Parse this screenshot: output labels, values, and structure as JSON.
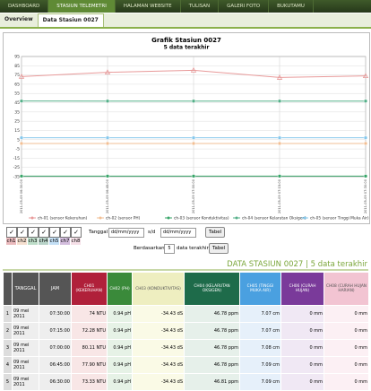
{
  "nav": [
    "DASHBOARD",
    "STASIUN TELEMETRI",
    "HALAMAN WEBSITE",
    "TULISAN",
    "GALERI FOTO",
    "BUKUTAMU"
  ],
  "tabs": [
    "Overview",
    "Data Stasiun 0027"
  ],
  "chart_data": {
    "type": "line",
    "title": "Grafik Stasiun 0027",
    "subtitle": "5 data terakhir",
    "categories": [
      "2011-05-09 06:30:00",
      "2011-05-09 06:45:00",
      "2011-05-09 07:00:00",
      "2011-05-09 07:15:00",
      "2011-05-09 07:30:00"
    ],
    "series": [
      {
        "name": "ch-01 (sensor Kekeruhan)",
        "color": "#e89a9a",
        "marker": "triangle",
        "values": [
          73.33,
          77.9,
          80.11,
          72.28,
          74
        ]
      },
      {
        "name": "ch-02 (sensor PH)",
        "color": "#f2bf94",
        "marker": "circle",
        "values": [
          0.94,
          0.94,
          0.94,
          0.94,
          0.94
        ]
      },
      {
        "name": "ch-03 (sensor Konduktivitas)",
        "color": "#3aa66a",
        "marker": "circle",
        "values": [
          -34.43,
          -34.43,
          -34.43,
          -34.43,
          -34.43
        ]
      },
      {
        "name": "ch-04 (sensor Kelarutan Oksigen)",
        "color": "#56b08a",
        "marker": "circle",
        "values": [
          46.81,
          46.78,
          46.78,
          46.78,
          46.78
        ]
      },
      {
        "name": "ch-05 (sensor Tinggi Muka Air)",
        "color": "#86c8ec",
        "marker": "circle",
        "values": [
          7.09,
          7.09,
          7.08,
          7.07,
          7.07
        ]
      }
    ],
    "ylim": [
      -35,
      95
    ],
    "yticks": [
      -35,
      -25,
      -15,
      -5,
      5,
      15,
      25,
      35,
      45,
      55,
      65,
      75,
      85,
      95
    ],
    "grid": true
  },
  "form": {
    "channels": [
      "ch1",
      "ch2",
      "ch3",
      "ch4",
      "ch5",
      "ch7",
      "ch8"
    ],
    "date_label": "Tanggal",
    "date_from": "dd/mm/yyyy",
    "sd": "s/d",
    "date_to": "dd/mm/yyyy",
    "button1": "Tabel",
    "by_label": "Berdasarkan",
    "count": "5",
    "count_suffix": "data terakhir",
    "button2": "Tabel"
  },
  "table": {
    "heading": "DATA STASIUN 0027 | 5 data terakhir",
    "headers": [
      "TANGGAL",
      "JAM",
      "CH01 (KEKERUHAN)",
      "CH02 (PH)",
      "CH03 (KONDUKTIVITAS)",
      "CH04 (KELARUTAN OKSIGEN)",
      "CH05 (TINGGI MUKA AIR)",
      "CH06 (CURAH HUJAN)",
      "CH08 (CURAH HUJAN HARIAN)"
    ],
    "rows": [
      [
        "1",
        "09 mei 2011",
        "07:30:00",
        "74 NTU",
        "0.94 pH",
        "-34.43 dS",
        "46.78 ppm",
        "7.07 cm",
        "0 mm",
        "0 mm"
      ],
      [
        "2",
        "09 mei 2011",
        "07:15:00",
        "72.28 NTU",
        "0.94 pH",
        "-34.43 dS",
        "46.78 ppm",
        "7.07 cm",
        "0 mm",
        "0 mm"
      ],
      [
        "3",
        "09 mei 2011",
        "07:00:00",
        "80.11 NTU",
        "0.94 pH",
        "-34.43 dS",
        "46.78 ppm",
        "7.08 cm",
        "0 mm",
        "0 mm"
      ],
      [
        "4",
        "09 mei 2011",
        "06:45:00",
        "77.90 NTU",
        "0.94 pH",
        "-34.43 dS",
        "46.78 ppm",
        "7.09 cm",
        "0 mm",
        "0 mm"
      ],
      [
        "5",
        "09 mei 2011",
        "06:30:00",
        "73.33 NTU",
        "0.94 pH",
        "-34.43 dS",
        "46.81 ppm",
        "7.09 cm",
        "0 mm",
        "0 mm"
      ]
    ]
  }
}
